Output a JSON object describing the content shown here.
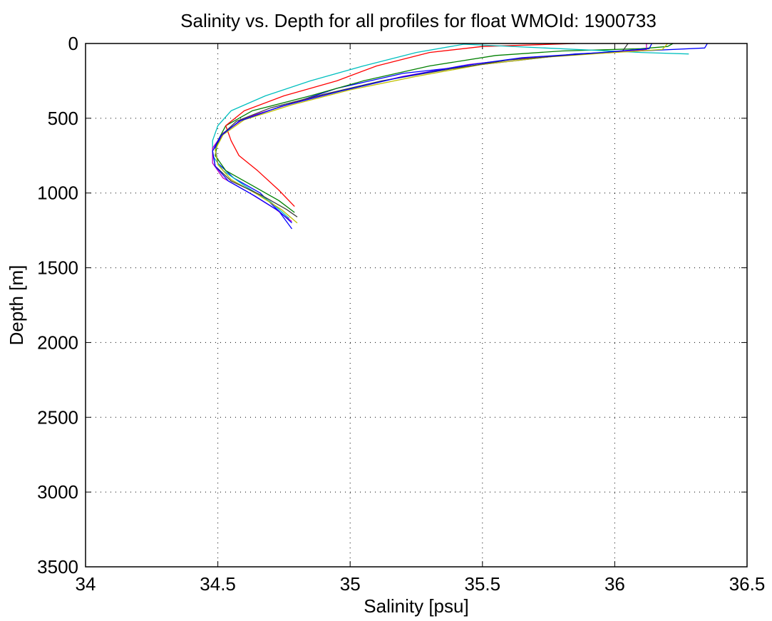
{
  "chart_data": {
    "type": "line",
    "title": "Salinity vs. Depth for all profiles for float WMOId: 1900733",
    "xlabel": "Salinity [psu]",
    "ylabel": "Depth [m]",
    "xlim": [
      34,
      36.5
    ],
    "ylim": [
      0,
      3500
    ],
    "y_reversed": true,
    "grid": true,
    "x_ticks": [
      "34",
      "34.5",
      "35",
      "35.5",
      "36",
      "36.5"
    ],
    "y_ticks": [
      "0",
      "500",
      "1000",
      "1500",
      "2000",
      "2500",
      "3000",
      "3500"
    ],
    "series": [
      {
        "color": "#0000ff",
        "points": [
          [
            36.35,
            0
          ],
          [
            36.34,
            30
          ],
          [
            35.85,
            70
          ],
          [
            35.7,
            100
          ],
          [
            35.45,
            150
          ],
          [
            35.2,
            200
          ],
          [
            34.95,
            300
          ],
          [
            34.78,
            400
          ],
          [
            34.6,
            500
          ],
          [
            34.52,
            600
          ],
          [
            34.49,
            700
          ],
          [
            34.5,
            800
          ],
          [
            34.56,
            900
          ],
          [
            34.66,
            1000
          ],
          [
            34.73,
            1120
          ],
          [
            34.78,
            1240
          ]
        ]
      },
      {
        "color": "#008000",
        "points": [
          [
            36.22,
            0
          ],
          [
            36.2,
            20
          ],
          [
            36.1,
            35
          ],
          [
            35.8,
            50
          ],
          [
            35.55,
            80
          ],
          [
            35.3,
            150
          ],
          [
            35.05,
            250
          ],
          [
            34.85,
            350
          ],
          [
            34.63,
            450
          ],
          [
            34.53,
            550
          ],
          [
            34.5,
            650
          ],
          [
            34.49,
            750
          ],
          [
            34.53,
            850
          ],
          [
            34.63,
            950
          ],
          [
            34.73,
            1050
          ],
          [
            34.79,
            1130
          ]
        ]
      },
      {
        "color": "#ff0000",
        "points": [
          [
            35.85,
            0
          ],
          [
            35.5,
            20
          ],
          [
            35.3,
            60
          ],
          [
            35.1,
            150
          ],
          [
            34.95,
            250
          ],
          [
            34.75,
            350
          ],
          [
            34.6,
            450
          ],
          [
            34.53,
            550
          ],
          [
            34.55,
            650
          ],
          [
            34.58,
            750
          ],
          [
            34.65,
            850
          ],
          [
            34.73,
            980
          ],
          [
            34.79,
            1090
          ]
        ]
      },
      {
        "color": "#00bfbf",
        "points": [
          [
            36.28,
            70
          ],
          [
            36.1,
            60
          ],
          [
            35.43,
            5
          ],
          [
            35.25,
            60
          ],
          [
            35.05,
            150
          ],
          [
            34.85,
            250
          ],
          [
            34.68,
            350
          ],
          [
            34.55,
            450
          ],
          [
            34.5,
            550
          ],
          [
            34.48,
            650
          ],
          [
            34.48,
            750
          ],
          [
            34.52,
            850
          ],
          [
            34.6,
            950
          ],
          [
            34.7,
            1060
          ],
          [
            34.77,
            1170
          ]
        ]
      },
      {
        "color": "#bf00bf",
        "points": [
          [
            36.12,
            0
          ],
          [
            36.12,
            40
          ],
          [
            36.0,
            60
          ],
          [
            35.7,
            90
          ],
          [
            35.45,
            140
          ],
          [
            35.2,
            220
          ],
          [
            34.98,
            310
          ],
          [
            34.78,
            400
          ],
          [
            34.6,
            500
          ],
          [
            34.52,
            600
          ],
          [
            34.48,
            700
          ],
          [
            34.48,
            800
          ],
          [
            34.52,
            900
          ],
          [
            34.62,
            1000
          ],
          [
            34.72,
            1110
          ],
          [
            34.78,
            1190
          ]
        ]
      },
      {
        "color": "#bfbf00",
        "points": [
          [
            36.2,
            0
          ],
          [
            36.18,
            40
          ],
          [
            36.0,
            60
          ],
          [
            35.75,
            90
          ],
          [
            35.5,
            140
          ],
          [
            35.25,
            220
          ],
          [
            35.0,
            310
          ],
          [
            34.78,
            410
          ],
          [
            34.6,
            510
          ],
          [
            34.52,
            610
          ],
          [
            34.49,
            710
          ],
          [
            34.5,
            810
          ],
          [
            34.55,
            910
          ],
          [
            34.65,
            1010
          ],
          [
            34.74,
            1110
          ],
          [
            34.8,
            1200
          ]
        ]
      },
      {
        "color": "#404040",
        "points": [
          [
            36.05,
            0
          ],
          [
            36.03,
            50
          ],
          [
            35.85,
            75
          ],
          [
            35.6,
            110
          ],
          [
            35.38,
            170
          ],
          [
            35.12,
            250
          ],
          [
            34.9,
            340
          ],
          [
            34.7,
            430
          ],
          [
            34.57,
            520
          ],
          [
            34.51,
            620
          ],
          [
            34.48,
            720
          ],
          [
            34.49,
            820
          ],
          [
            34.55,
            920
          ],
          [
            34.67,
            1020
          ],
          [
            34.76,
            1110
          ],
          [
            34.8,
            1160
          ]
        ]
      },
      {
        "color": "#0000ff",
        "points": [
          [
            36.14,
            0
          ],
          [
            36.13,
            35
          ],
          [
            35.95,
            60
          ],
          [
            35.65,
            95
          ],
          [
            35.42,
            150
          ],
          [
            35.18,
            230
          ],
          [
            34.96,
            320
          ],
          [
            34.74,
            420
          ],
          [
            34.58,
            520
          ],
          [
            34.51,
            620
          ],
          [
            34.48,
            720
          ],
          [
            34.49,
            820
          ],
          [
            34.54,
            920
          ],
          [
            34.64,
            1020
          ],
          [
            34.73,
            1120
          ],
          [
            34.78,
            1200
          ]
        ]
      }
    ]
  }
}
